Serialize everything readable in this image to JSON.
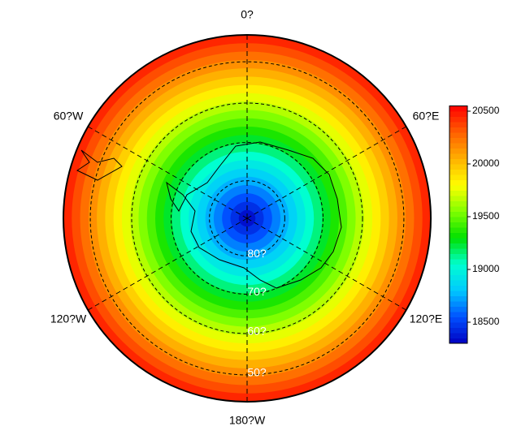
{
  "chart_data": {
    "type": "polar-contour",
    "meridian_labels": [
      "0?",
      "60?E",
      "120?E",
      "180?W",
      "120?W",
      "60?W"
    ],
    "latitude_circles": [
      {
        "value": 80,
        "label": "80?"
      },
      {
        "value": 70,
        "label": "70?"
      },
      {
        "value": 60,
        "label": "60?"
      },
      {
        "value": 50,
        "label": "50?"
      }
    ],
    "rings": {
      "values": [
        18350,
        18450,
        18550,
        18650,
        18750,
        18850,
        18950,
        19050,
        19150,
        19250,
        19350,
        19450,
        19550,
        19650,
        19750,
        19850,
        19950,
        20050,
        20150,
        20250,
        20350,
        20450
      ]
    },
    "colormap": [
      "#0000c0",
      "#0050ff",
      "#00c8ff",
      "#00ffd0",
      "#00e000",
      "#80ff00",
      "#ffff00",
      "#ffb000",
      "#ff6000",
      "#ff0000"
    ],
    "colorbar": {
      "lim": [
        18300,
        20550
      ],
      "ticks": [
        18500,
        19000,
        19500,
        20000,
        20500
      ]
    }
  }
}
